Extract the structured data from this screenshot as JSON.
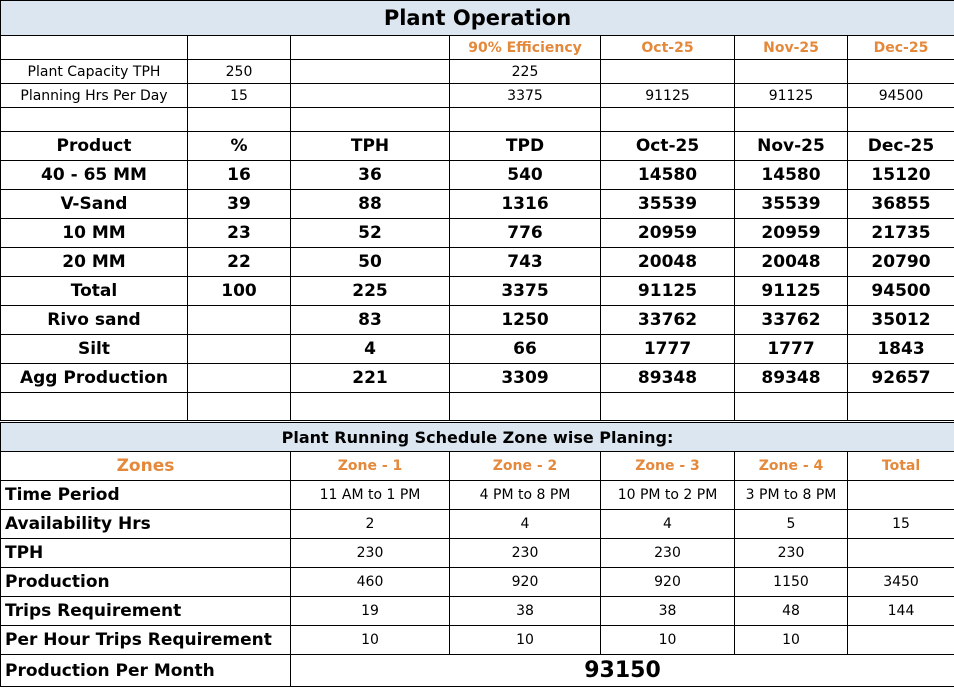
{
  "title": "Plant Operation",
  "top": {
    "header": [
      "",
      "",
      "",
      "90% Efficiency",
      "Oct-25",
      "Nov-25",
      "Dec-25"
    ],
    "rows": [
      [
        "Plant Capacity TPH",
        "250",
        "",
        "225",
        "",
        "",
        ""
      ],
      [
        "Planning Hrs Per Day",
        "15",
        "",
        "3375",
        "91125",
        "91125",
        "94500"
      ]
    ]
  },
  "product_table": {
    "columns": [
      "Product",
      "%",
      "TPH",
      "TPD",
      "Oct-25",
      "Nov-25",
      "Dec-25"
    ],
    "rows": [
      [
        "40 - 65 MM",
        "16",
        "36",
        "540",
        "14580",
        "14580",
        "15120"
      ],
      [
        "V-Sand",
        "39",
        "88",
        "1316",
        "35539",
        "35539",
        "36855"
      ],
      [
        "10 MM",
        "23",
        "52",
        "776",
        "20959",
        "20959",
        "21735"
      ],
      [
        "20 MM",
        "22",
        "50",
        "743",
        "20048",
        "20048",
        "20790"
      ],
      [
        "Total",
        "100",
        "225",
        "3375",
        "91125",
        "91125",
        "94500"
      ],
      [
        "Rivo sand",
        "",
        "83",
        "1250",
        "33762",
        "33762",
        "35012"
      ],
      [
        "Silt",
        "",
        "4",
        "66",
        "1777",
        "1777",
        "1843"
      ],
      [
        "Agg Production",
        "",
        "221",
        "3309",
        "89348",
        "89348",
        "92657"
      ]
    ]
  },
  "schedule": {
    "title": "Plant Running Schedule Zone wise Planing:",
    "header": [
      "Zones",
      "Zone - 1",
      "Zone - 2",
      "Zone - 3",
      "Zone - 4",
      "Total"
    ],
    "rows": [
      [
        "Time Period",
        "11 AM to 1 PM",
        "4 PM to 8 PM",
        "10 PM to 2 PM",
        "3 PM to 8 PM",
        ""
      ],
      [
        "Availability Hrs",
        "2",
        "4",
        "4",
        "5",
        "15"
      ],
      [
        "TPH",
        "230",
        "230",
        "230",
        "230",
        ""
      ],
      [
        "Production",
        "460",
        "920",
        "920",
        "1150",
        "3450"
      ],
      [
        "Trips Requirement",
        "19",
        "38",
        "38",
        "48",
        "144"
      ],
      [
        "Per Hour Trips Requirement",
        "10",
        "10",
        "10",
        "10",
        ""
      ]
    ],
    "per_month_label": "Production Per Month",
    "per_month_value": "93150"
  }
}
